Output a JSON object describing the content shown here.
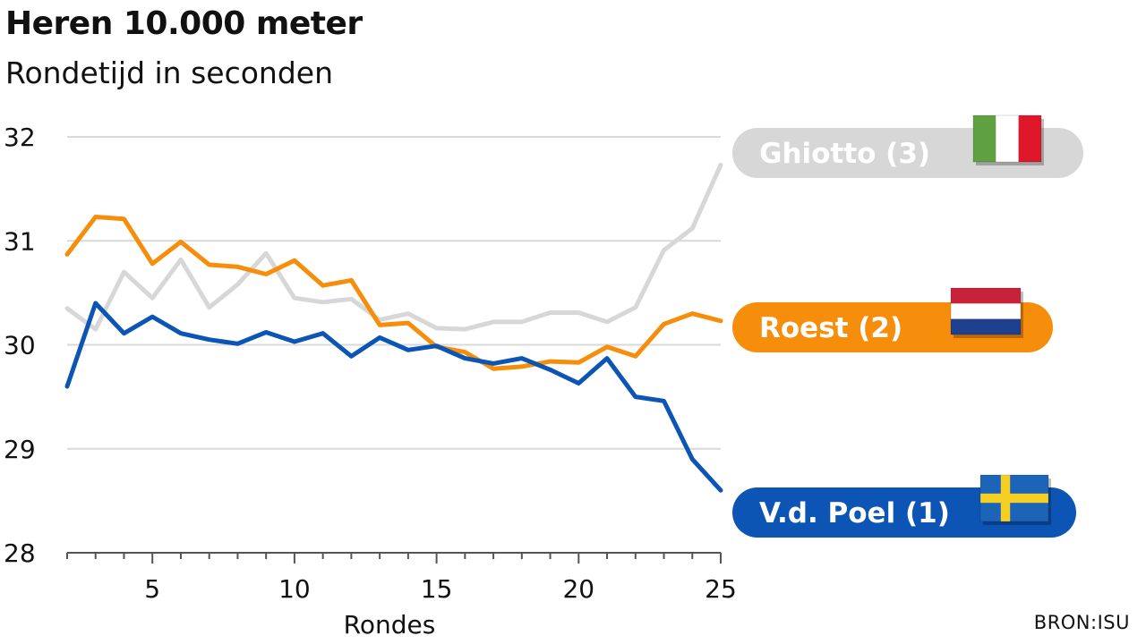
{
  "title": "Heren 10.000 meter",
  "subtitle": "Rondetijd in seconden",
  "source": "BRON:ISU",
  "chart_data": {
    "type": "line",
    "title": "Heren 10.000 meter",
    "subtitle": "Rondetijd in seconden",
    "xlabel": "Rondes",
    "ylabel": "",
    "xlim": [
      2,
      25
    ],
    "ylim": [
      28,
      32
    ],
    "xticks": [
      5,
      10,
      15,
      20,
      25
    ],
    "yticks": [
      28,
      29,
      30,
      31,
      32
    ],
    "grid": "horizontal",
    "x": [
      2,
      3,
      4,
      5,
      6,
      7,
      8,
      9,
      10,
      11,
      12,
      13,
      14,
      15,
      16,
      17,
      18,
      19,
      20,
      21,
      22,
      23,
      24,
      25
    ],
    "series": [
      {
        "name": "Ghiotto (3)",
        "color": "#d7d7d7",
        "flag": "italy-flag",
        "values": [
          30.35,
          30.15,
          30.7,
          30.45,
          30.82,
          30.36,
          30.58,
          30.88,
          30.45,
          30.41,
          30.44,
          30.24,
          30.3,
          30.16,
          30.15,
          30.22,
          30.22,
          30.31,
          30.31,
          30.22,
          30.36,
          30.91,
          31.12,
          31.73
        ]
      },
      {
        "name": "Roest (2)",
        "color": "#f78e0b",
        "flag": "netherlands-flag",
        "values": [
          30.87,
          31.23,
          31.21,
          30.78,
          30.99,
          30.77,
          30.75,
          30.68,
          30.81,
          30.57,
          30.62,
          30.19,
          30.21,
          29.98,
          29.93,
          29.77,
          29.79,
          29.84,
          29.83,
          29.98,
          29.89,
          30.2,
          30.3,
          30.23
        ]
      },
      {
        "name": "V.d. Poel (1)",
        "color": "#0c55b5",
        "flag": "sweden-flag",
        "values": [
          29.6,
          30.4,
          30.11,
          30.27,
          30.11,
          30.05,
          30.01,
          30.12,
          30.03,
          30.11,
          29.89,
          30.07,
          29.95,
          29.99,
          29.87,
          29.82,
          29.87,
          29.76,
          29.63,
          29.87,
          29.5,
          29.46,
          28.9,
          28.6
        ]
      }
    ]
  }
}
